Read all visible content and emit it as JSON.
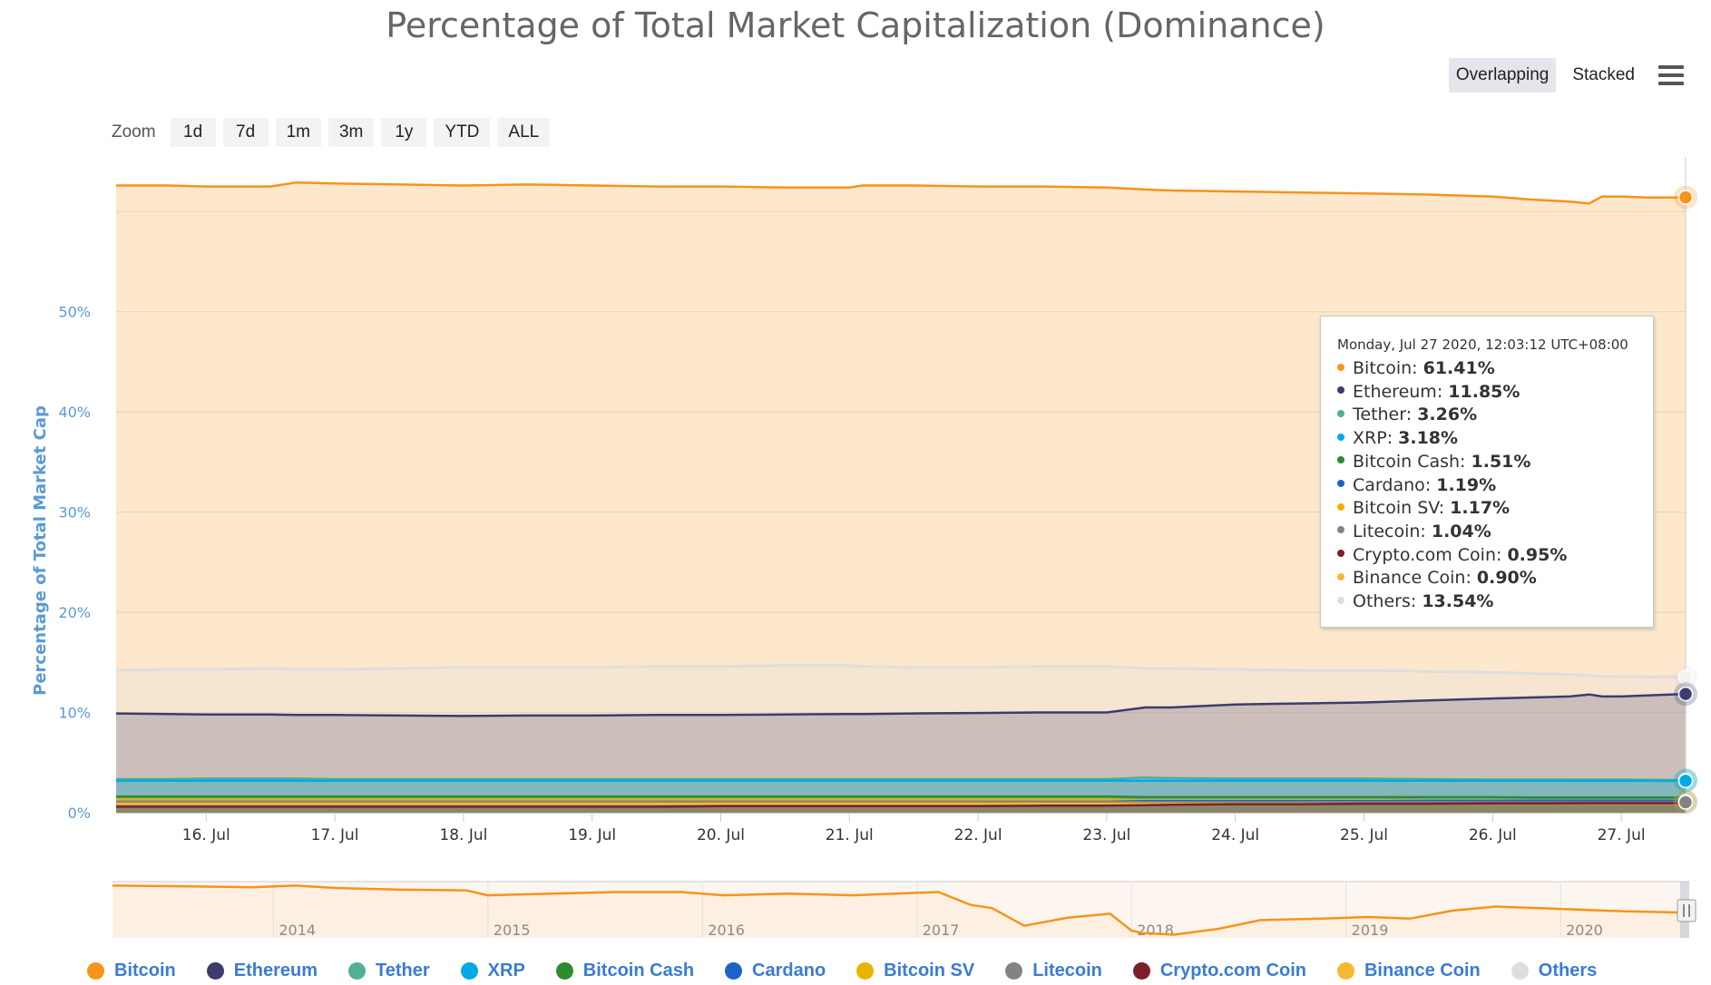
{
  "title": "Percentage of Total Market Capitalization (Dominance)",
  "modes": [
    {
      "label": "Overlapping",
      "active": true
    },
    {
      "label": "Stacked",
      "active": false
    }
  ],
  "zoom": {
    "label": "Zoom",
    "buttons": [
      "1d",
      "7d",
      "1m",
      "3m",
      "1y",
      "YTD",
      "ALL"
    ]
  },
  "chart_data": {
    "type": "area",
    "title": "Percentage of Total Market Capitalization (Dominance)",
    "ylabel": "Percentage of Total Market Cap",
    "xlabel": "",
    "ylim": [
      0,
      65
    ],
    "yticks": [
      "0%",
      "10%",
      "20%",
      "30%",
      "40%",
      "50%"
    ],
    "yticks_values": [
      0,
      10,
      20,
      30,
      40,
      50
    ],
    "x_days": [
      15.3,
      27.5
    ],
    "xticks": [
      "16. Jul",
      "17. Jul",
      "18. Jul",
      "19. Jul",
      "20. Jul",
      "21. Jul",
      "22. Jul",
      "23. Jul",
      "24. Jul",
      "25. Jul",
      "26. Jul",
      "27. Jul"
    ],
    "xticks_values": [
      16,
      17,
      18,
      19,
      20,
      21,
      22,
      23,
      24,
      25,
      26,
      27
    ],
    "x": [
      15.3,
      15.7,
      16.0,
      16.5,
      16.7,
      17.0,
      17.5,
      18.0,
      18.5,
      19.0,
      19.5,
      20.0,
      20.5,
      21.0,
      21.1,
      21.5,
      22.0,
      22.5,
      23.0,
      23.3,
      23.5,
      24.0,
      24.5,
      25.0,
      25.5,
      26.0,
      26.3,
      26.6,
      26.75,
      26.85,
      27.0,
      27.2,
      27.5
    ],
    "series": [
      {
        "name": "Bitcoin",
        "color": "#f7931a",
        "values": [
          62.6,
          62.6,
          62.5,
          62.5,
          62.9,
          62.8,
          62.7,
          62.6,
          62.7,
          62.6,
          62.5,
          62.5,
          62.4,
          62.4,
          62.6,
          62.6,
          62.5,
          62.5,
          62.4,
          62.2,
          62.1,
          62.0,
          61.9,
          61.8,
          61.7,
          61.5,
          61.2,
          61.0,
          60.8,
          61.5,
          61.5,
          61.4,
          61.41
        ]
      },
      {
        "name": "Ethereum",
        "color": "#3c3c6e",
        "values": [
          9.9,
          9.85,
          9.8,
          9.8,
          9.75,
          9.75,
          9.7,
          9.65,
          9.7,
          9.7,
          9.75,
          9.75,
          9.8,
          9.85,
          9.85,
          9.9,
          9.95,
          10.0,
          10.0,
          10.5,
          10.5,
          10.8,
          10.9,
          11.0,
          11.2,
          11.4,
          11.5,
          11.6,
          11.8,
          11.6,
          11.6,
          11.7,
          11.85
        ]
      },
      {
        "name": "Tether",
        "color": "#50af95",
        "values": [
          3.35,
          3.35,
          3.4,
          3.4,
          3.4,
          3.35,
          3.35,
          3.35,
          3.35,
          3.35,
          3.35,
          3.35,
          3.35,
          3.35,
          3.35,
          3.35,
          3.35,
          3.35,
          3.35,
          3.5,
          3.45,
          3.4,
          3.4,
          3.4,
          3.35,
          3.3,
          3.3,
          3.3,
          3.3,
          3.3,
          3.3,
          3.28,
          3.26
        ]
      },
      {
        "name": "XRP",
        "color": "#00aae4",
        "values": [
          3.2,
          3.2,
          3.2,
          3.2,
          3.2,
          3.2,
          3.2,
          3.2,
          3.2,
          3.2,
          3.2,
          3.2,
          3.2,
          3.2,
          3.2,
          3.2,
          3.2,
          3.2,
          3.2,
          3.2,
          3.2,
          3.2,
          3.2,
          3.2,
          3.2,
          3.2,
          3.2,
          3.2,
          3.18,
          3.18,
          3.18,
          3.18,
          3.18
        ]
      },
      {
        "name": "Bitcoin Cash",
        "color": "#2e8b2e",
        "values": [
          1.6,
          1.6,
          1.6,
          1.6,
          1.6,
          1.6,
          1.6,
          1.6,
          1.6,
          1.6,
          1.6,
          1.6,
          1.6,
          1.6,
          1.6,
          1.6,
          1.6,
          1.6,
          1.6,
          1.55,
          1.55,
          1.55,
          1.55,
          1.55,
          1.55,
          1.55,
          1.52,
          1.52,
          1.51,
          1.51,
          1.51,
          1.51,
          1.51
        ]
      },
      {
        "name": "Cardano",
        "color": "#1e62c8",
        "values": [
          1.05,
          1.05,
          1.05,
          1.05,
          1.05,
          1.05,
          1.05,
          1.05,
          1.05,
          1.05,
          1.05,
          1.1,
          1.1,
          1.1,
          1.1,
          1.1,
          1.1,
          1.1,
          1.1,
          1.15,
          1.15,
          1.15,
          1.15,
          1.15,
          1.18,
          1.18,
          1.19,
          1.19,
          1.19,
          1.19,
          1.19,
          1.19,
          1.19
        ]
      },
      {
        "name": "Bitcoin SV",
        "color": "#eab300",
        "values": [
          1.3,
          1.3,
          1.3,
          1.3,
          1.3,
          1.3,
          1.3,
          1.3,
          1.3,
          1.3,
          1.3,
          1.3,
          1.3,
          1.3,
          1.3,
          1.3,
          1.3,
          1.3,
          1.3,
          1.2,
          1.2,
          1.2,
          1.2,
          1.2,
          1.2,
          1.2,
          1.18,
          1.18,
          1.17,
          1.17,
          1.17,
          1.17,
          1.17
        ]
      },
      {
        "name": "Litecoin",
        "color": "#838383",
        "values": [
          1.1,
          1.1,
          1.1,
          1.1,
          1.1,
          1.1,
          1.1,
          1.1,
          1.1,
          1.1,
          1.1,
          1.1,
          1.1,
          1.1,
          1.1,
          1.1,
          1.1,
          1.1,
          1.1,
          1.05,
          1.05,
          1.05,
          1.05,
          1.05,
          1.05,
          1.05,
          1.04,
          1.04,
          1.04,
          1.04,
          1.04,
          1.04,
          1.04
        ]
      },
      {
        "name": "Crypto.com Coin",
        "color": "#7b1f2a",
        "values": [
          0.6,
          0.6,
          0.6,
          0.6,
          0.6,
          0.6,
          0.6,
          0.6,
          0.6,
          0.6,
          0.6,
          0.65,
          0.65,
          0.65,
          0.65,
          0.65,
          0.65,
          0.7,
          0.7,
          0.75,
          0.8,
          0.85,
          0.85,
          0.9,
          0.9,
          0.92,
          0.93,
          0.94,
          0.95,
          0.95,
          0.95,
          0.95,
          0.95
        ]
      },
      {
        "name": "Binance Coin",
        "color": "#f3ba2f",
        "values": [
          0.9,
          0.9,
          0.9,
          0.9,
          0.9,
          0.9,
          0.9,
          0.9,
          0.9,
          0.9,
          0.9,
          0.9,
          0.9,
          0.9,
          0.9,
          0.9,
          0.9,
          0.9,
          0.9,
          0.9,
          0.9,
          0.9,
          0.9,
          0.9,
          0.9,
          0.9,
          0.9,
          0.9,
          0.9,
          0.9,
          0.9,
          0.9,
          0.9
        ]
      },
      {
        "name": "Others",
        "color": "#dedede",
        "values": [
          14.2,
          14.3,
          14.3,
          14.4,
          14.3,
          14.3,
          14.4,
          14.5,
          14.5,
          14.5,
          14.6,
          14.6,
          14.7,
          14.7,
          14.6,
          14.5,
          14.5,
          14.6,
          14.6,
          14.4,
          14.4,
          14.3,
          14.2,
          14.2,
          14.1,
          14.0,
          13.9,
          13.8,
          13.7,
          13.6,
          13.6,
          13.55,
          13.54
        ]
      }
    ],
    "navigator": {
      "years": [
        "2014",
        "2015",
        "2016",
        "2017",
        "2018",
        "2019",
        "2020"
      ],
      "years_values": [
        2014,
        2015,
        2016,
        2017,
        2018,
        2019,
        2020
      ],
      "x_range": [
        2013.25,
        2020.6
      ],
      "y_range": [
        30,
        100
      ],
      "x": [
        2013.25,
        2013.6,
        2013.9,
        2014.1,
        2014.3,
        2014.6,
        2014.9,
        2015.0,
        2015.3,
        2015.6,
        2015.9,
        2016.1,
        2016.4,
        2016.7,
        2016.9,
        2017.1,
        2017.25,
        2017.35,
        2017.5,
        2017.7,
        2017.9,
        2018.0,
        2018.05,
        2018.2,
        2018.4,
        2018.6,
        2018.9,
        2019.1,
        2019.3,
        2019.5,
        2019.7,
        2019.9,
        2020.1,
        2020.3,
        2020.6
      ],
      "values": [
        95,
        94,
        93,
        95,
        92,
        90,
        89,
        83,
        85,
        87,
        87,
        83,
        85,
        83,
        85,
        87,
        71,
        67,
        45,
        55,
        60,
        39,
        36,
        34,
        41,
        52,
        54,
        56,
        54,
        64,
        69,
        67,
        65,
        63,
        61.4
      ]
    }
  },
  "tooltip": {
    "date": "Monday, Jul 27 2020, 12:03:12 UTC+08:00",
    "rows": [
      {
        "name": "Bitcoin",
        "value": "61.41%",
        "color": "#f7931a"
      },
      {
        "name": "Ethereum",
        "value": "11.85%",
        "color": "#3c3c6e"
      },
      {
        "name": "Tether",
        "value": "3.26%",
        "color": "#50af95"
      },
      {
        "name": "XRP",
        "value": "3.18%",
        "color": "#00aae4"
      },
      {
        "name": "Bitcoin Cash",
        "value": "1.51%",
        "color": "#2e8b2e"
      },
      {
        "name": "Cardano",
        "value": "1.19%",
        "color": "#1e62c8"
      },
      {
        "name": "Bitcoin SV",
        "value": "1.17%",
        "color": "#eab300"
      },
      {
        "name": "Litecoin",
        "value": "1.04%",
        "color": "#838383"
      },
      {
        "name": "Crypto.com Coin",
        "value": "0.95%",
        "color": "#7b1f2a"
      },
      {
        "name": "Binance Coin",
        "value": "0.90%",
        "color": "#f3ba2f"
      },
      {
        "name": "Others",
        "value": "13.54%",
        "color": "#dedede"
      }
    ]
  },
  "legend": [
    {
      "name": "Bitcoin",
      "color": "#f7931a"
    },
    {
      "name": "Ethereum",
      "color": "#3c3c6e"
    },
    {
      "name": "Tether",
      "color": "#50af95"
    },
    {
      "name": "XRP",
      "color": "#00aae4"
    },
    {
      "name": "Bitcoin Cash",
      "color": "#2e8b2e"
    },
    {
      "name": "Cardano",
      "color": "#1e62c8"
    },
    {
      "name": "Bitcoin SV",
      "color": "#eab300"
    },
    {
      "name": "Litecoin",
      "color": "#838383"
    },
    {
      "name": "Crypto.com Coin",
      "color": "#7b1f2a"
    },
    {
      "name": "Binance Coin",
      "color": "#f3ba2f"
    },
    {
      "name": "Others",
      "color": "#dedede"
    }
  ]
}
